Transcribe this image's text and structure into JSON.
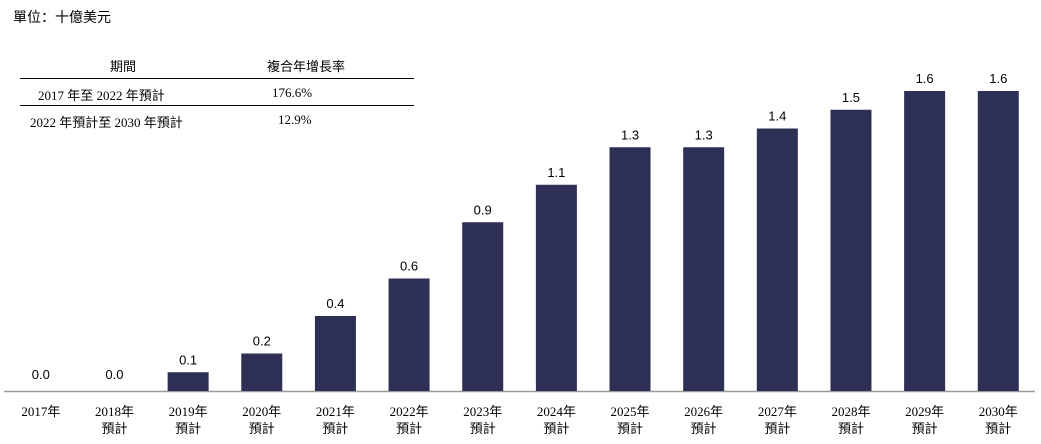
{
  "unit_label": "單位：十億美元",
  "cagr_table": {
    "headers": [
      "期間",
      "複合年增長率"
    ],
    "rows": [
      {
        "period": "2017 年至 2022 年預計",
        "rate": "176.6%"
      },
      {
        "period": "2022 年預計至 2030 年預計",
        "rate": "12.9%"
      }
    ]
  },
  "chart_data": {
    "type": "bar",
    "categories": [
      [
        "2017年"
      ],
      [
        "2018年",
        "預計"
      ],
      [
        "2019年",
        "預計"
      ],
      [
        "2020年",
        "預計"
      ],
      [
        "2021年",
        "預計"
      ],
      [
        "2022年",
        "預計"
      ],
      [
        "2023年",
        "預計"
      ],
      [
        "2024年",
        "預計"
      ],
      [
        "2025年",
        "預計"
      ],
      [
        "2026年",
        "預計"
      ],
      [
        "2027年",
        "預計"
      ],
      [
        "2028年",
        "預計"
      ],
      [
        "2029年",
        "預計"
      ],
      [
        "2030年",
        "預計"
      ]
    ],
    "values": [
      0.0,
      0.0,
      0.1,
      0.2,
      0.4,
      0.6,
      0.9,
      1.1,
      1.3,
      1.3,
      1.4,
      1.5,
      1.6,
      1.6
    ],
    "value_labels": [
      "0.0",
      "0.0",
      "0.1",
      "0.2",
      "0.4",
      "0.6",
      "0.9",
      "1.1",
      "1.3",
      "1.3",
      "1.4",
      "1.5",
      "1.6",
      "1.6"
    ],
    "ylabel": "單位：十億美元",
    "bar_color": "#2d2f55",
    "axis_color": "#999999",
    "grid": false,
    "legend": "none"
  }
}
